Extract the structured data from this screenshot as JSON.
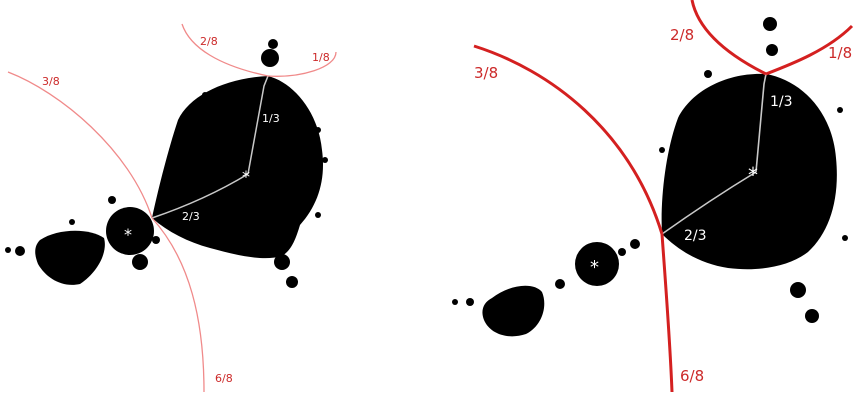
{
  "colors": {
    "set_fill": "#000000",
    "thin_ray": "#f08a8a",
    "thick_ray": "#d42020",
    "ray_label": "#cc2a2a",
    "internal_path": "#c8c8c8",
    "center_mark": "#ffffff"
  },
  "left_panel": {
    "rays": [
      {
        "label": "2/8"
      },
      {
        "label": "1/8"
      },
      {
        "label": "3/8"
      },
      {
        "label": "6/8"
      }
    ],
    "internal_labels": [
      {
        "label": "1/3"
      },
      {
        "label": "2/3"
      }
    ],
    "center_marks": [
      "*",
      "*"
    ]
  },
  "right_panel": {
    "rays": [
      {
        "label": "2/8"
      },
      {
        "label": "1/8"
      },
      {
        "label": "3/8"
      },
      {
        "label": "6/8"
      }
    ],
    "internal_labels": [
      {
        "label": "1/3"
      },
      {
        "label": "2/3"
      }
    ],
    "center_marks": [
      "*",
      "*"
    ]
  }
}
